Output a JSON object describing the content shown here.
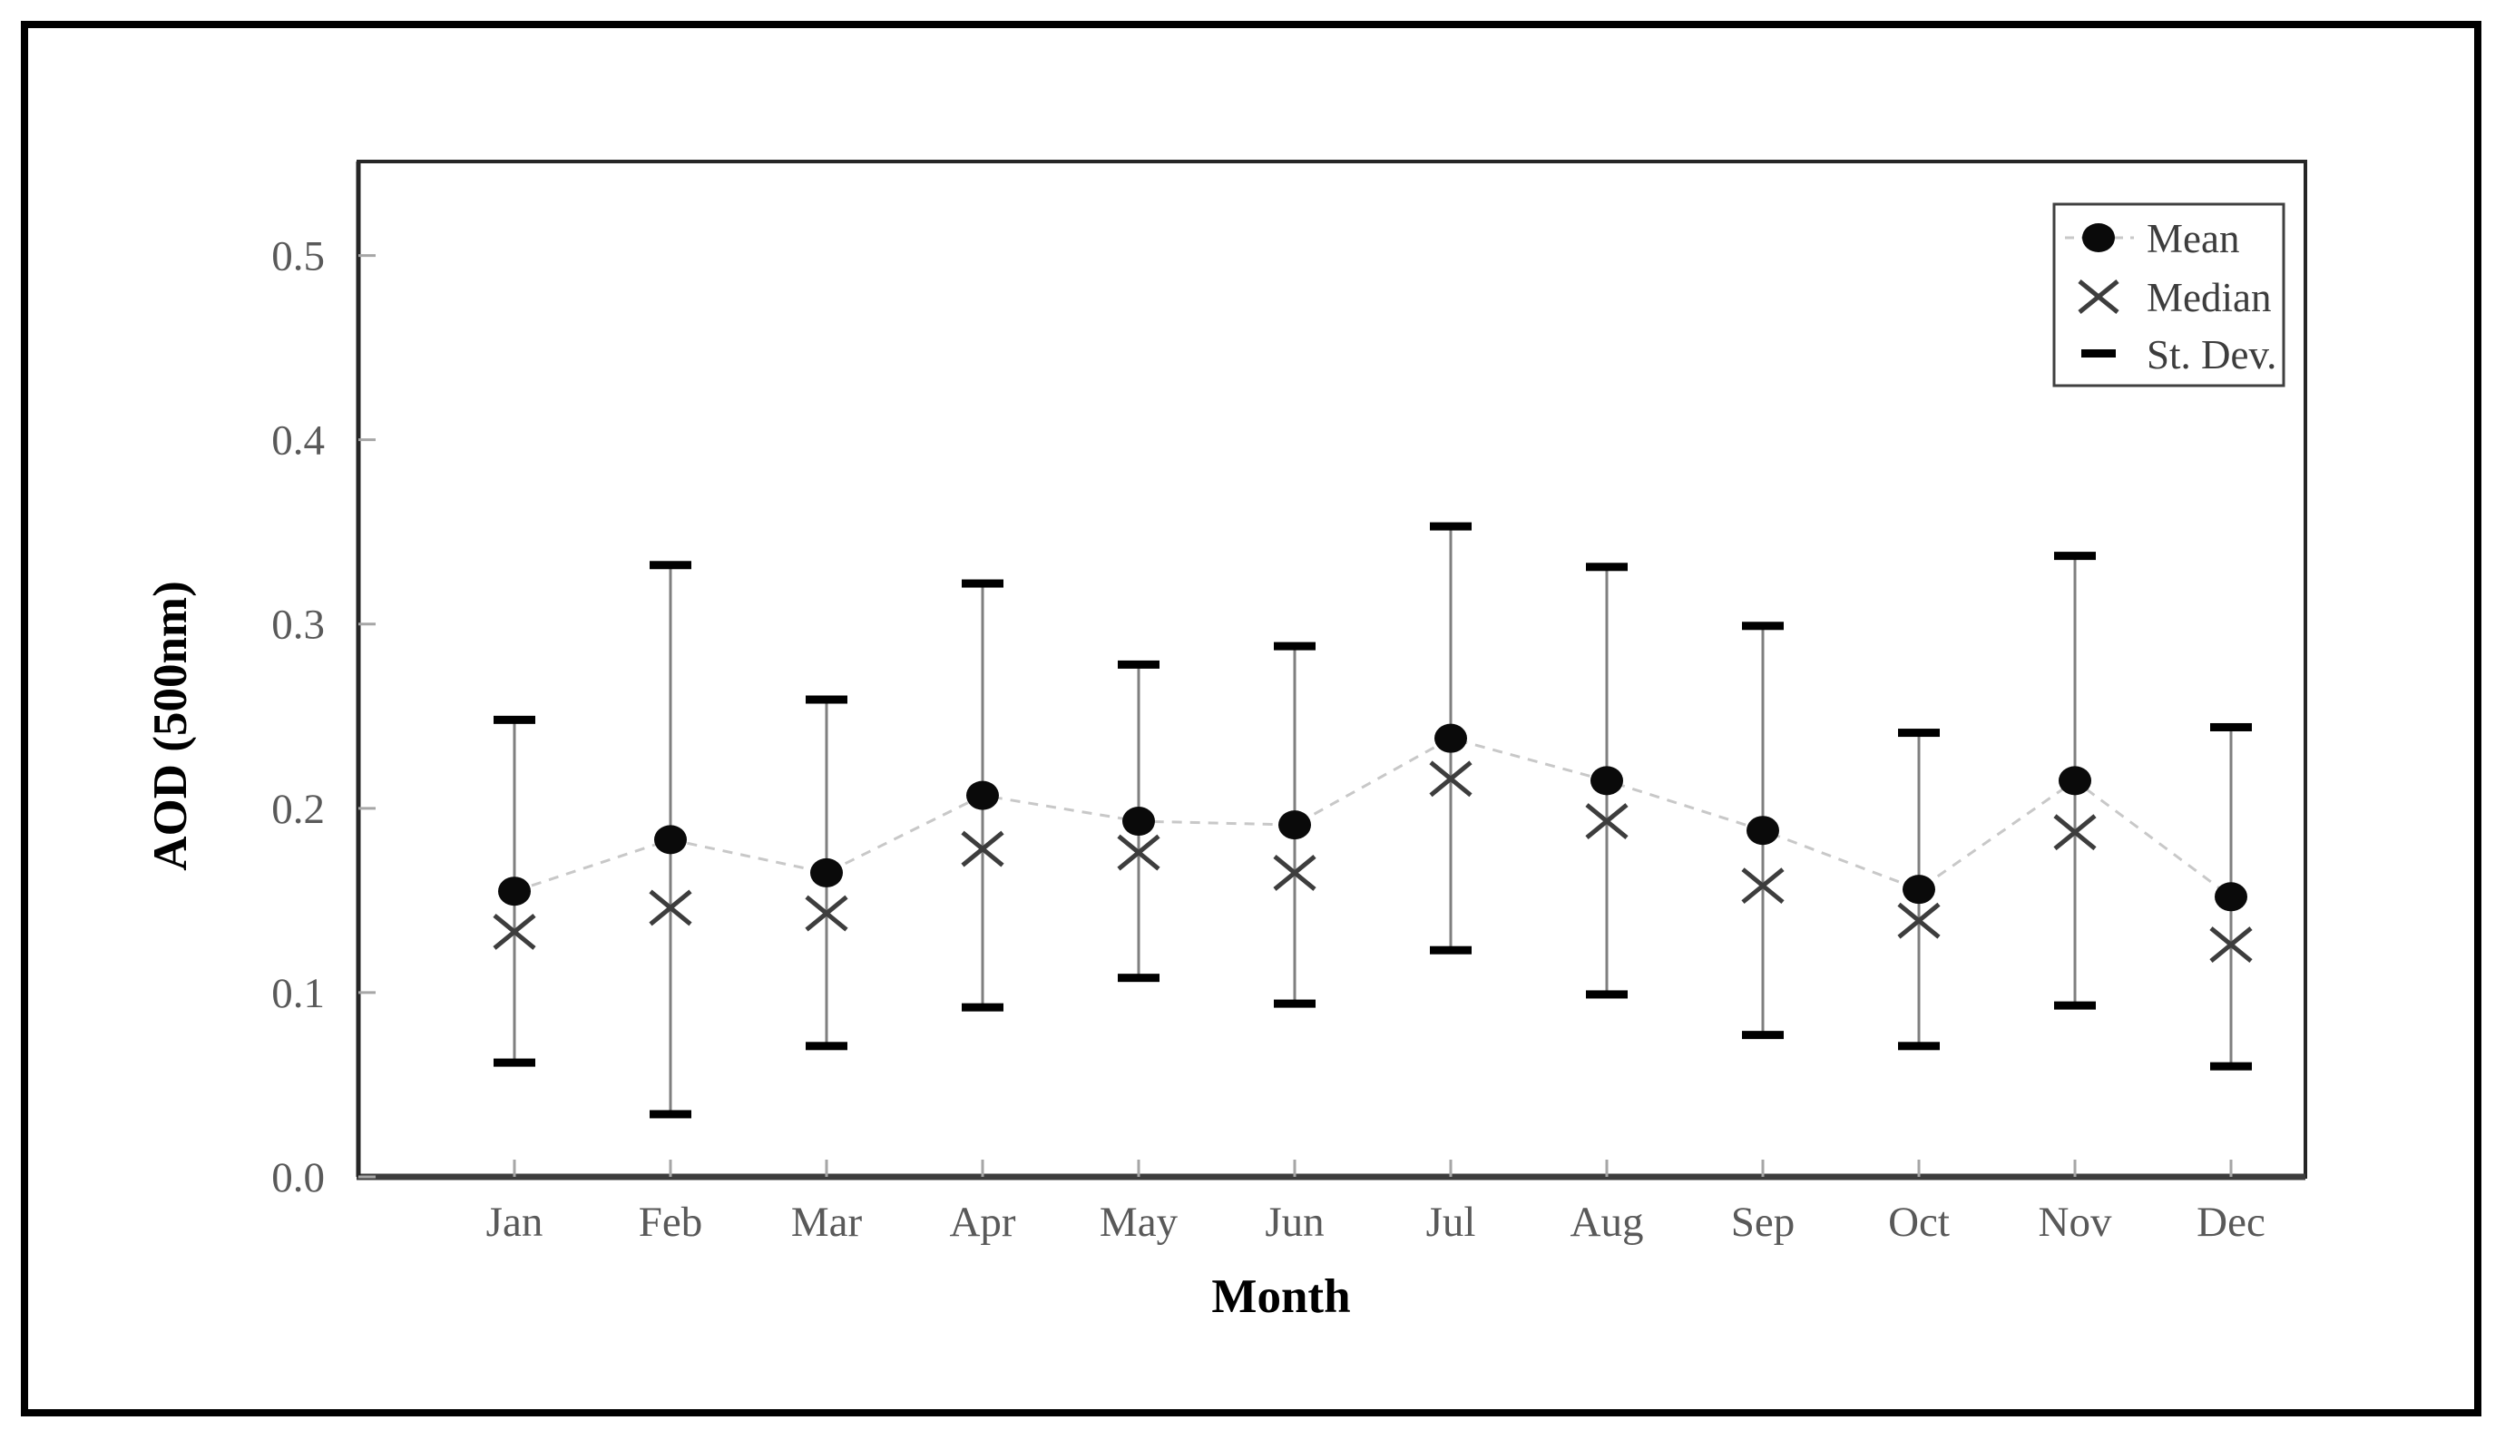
{
  "figure": {
    "y_axis_title": "AOD (500nm)",
    "x_axis_title": "Month",
    "legend": [
      {
        "key": "mean",
        "label": "Mean"
      },
      {
        "key": "median",
        "label": "Median"
      },
      {
        "key": "stdev",
        "label": "St. Dev."
      }
    ]
  },
  "chart_data": {
    "type": "scatter",
    "title": "",
    "xlabel": "Month",
    "ylabel": "AOD (500nm)",
    "categories": [
      "Jan",
      "Feb",
      "Mar",
      "Apr",
      "May",
      "Jun",
      "Jul",
      "Aug",
      "Sep",
      "Oct",
      "Nov",
      "Dec"
    ],
    "y_ticks": [
      "0.0",
      "0.1",
      "0.2",
      "0.3",
      "0.4",
      "0.5"
    ],
    "y_tick_values": [
      0.0,
      0.1,
      0.2,
      0.3,
      0.4,
      0.5
    ],
    "ylim": [
      0,
      0.551
    ],
    "grid": false,
    "legend_position": "top-right",
    "series": [
      {
        "name": "Mean",
        "marker": "filled-circle",
        "line": "dotted",
        "values": [
          0.155,
          0.183,
          0.165,
          0.207,
          0.193,
          0.191,
          0.238,
          0.215,
          0.188,
          0.156,
          0.215,
          0.152
        ]
      },
      {
        "name": "Median",
        "marker": "x",
        "line": "none",
        "values": [
          0.133,
          0.146,
          0.143,
          0.178,
          0.176,
          0.165,
          0.216,
          0.193,
          0.158,
          0.139,
          0.187,
          0.126
        ]
      },
      {
        "name": "St. Dev.",
        "marker": "error-bar",
        "note": "error bars drawn as mean plus-minus st_dev",
        "values": [
          0.093,
          0.149,
          0.094,
          0.115,
          0.085,
          0.097,
          0.115,
          0.116,
          0.111,
          0.085,
          0.122,
          0.092
        ]
      }
    ],
    "colors": {
      "mean_marker": "#0a0a0a",
      "median_marker": "#3d3d3d",
      "error_line": "#7f7f7f",
      "error_cap": "#000000",
      "connector_line": "#c8c8c8",
      "axis_line": "#262626",
      "tick_mark": "#a6a6a6",
      "tick_text": "#595959",
      "legend_border": "#404040",
      "legend_text": "#3d3d3d"
    }
  }
}
